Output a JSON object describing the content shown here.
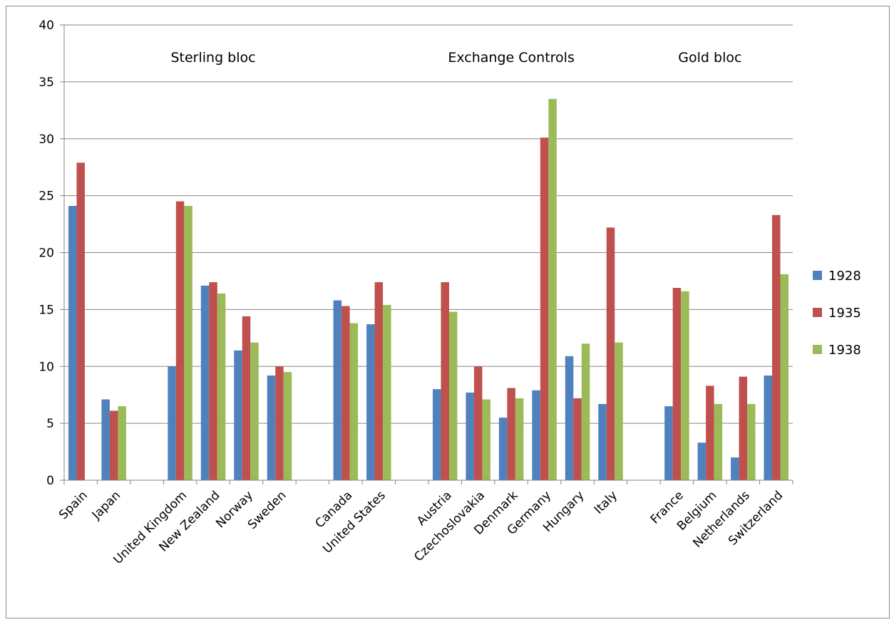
{
  "chart_data": {
    "type": "bar",
    "title": "",
    "xlabel": "",
    "ylabel": "",
    "ylim": [
      0,
      40
    ],
    "yticks": [
      "0",
      "5",
      "10",
      "15",
      "20",
      "25",
      "30",
      "35",
      "40"
    ],
    "grid": true,
    "legend_position": "right",
    "categories": [
      "Spain",
      "Japan",
      "",
      "United Kingdom",
      "New Zealand",
      "Norway",
      "Sweden",
      "",
      "Canada",
      "United States",
      "",
      "Austria",
      "Czechoslovakia",
      "Denmark",
      "Germany",
      "Hungary",
      "Italy",
      "",
      "France",
      "Belgium",
      "Netherlands",
      "Switzerland"
    ],
    "series": [
      {
        "name": "1928",
        "color": "#4f81bd",
        "values": [
          24.1,
          7.1,
          null,
          10.0,
          17.1,
          11.4,
          9.2,
          null,
          15.8,
          13.7,
          null,
          8.0,
          7.7,
          5.5,
          7.9,
          10.9,
          6.7,
          null,
          6.5,
          3.3,
          2.0,
          9.2
        ]
      },
      {
        "name": "1935",
        "color": "#c0504d",
        "values": [
          27.9,
          6.1,
          null,
          24.5,
          17.4,
          14.4,
          10.0,
          null,
          15.3,
          17.4,
          null,
          17.4,
          10.0,
          8.1,
          30.1,
          7.2,
          22.2,
          null,
          16.9,
          8.3,
          9.1,
          23.3
        ]
      },
      {
        "name": "1938",
        "color": "#9bbb59",
        "values": [
          null,
          6.5,
          null,
          24.1,
          16.4,
          12.1,
          9.5,
          null,
          13.8,
          15.4,
          null,
          14.8,
          7.1,
          7.2,
          33.5,
          12.0,
          12.1,
          null,
          16.6,
          6.7,
          6.7,
          18.1
        ]
      }
    ],
    "group_labels": [
      {
        "text": "Sterling bloc",
        "category_index": 4.5
      },
      {
        "text": "Exchange Controls",
        "category_index": 13.5
      },
      {
        "text": "Gold bloc",
        "category_index": 19.5
      }
    ]
  }
}
